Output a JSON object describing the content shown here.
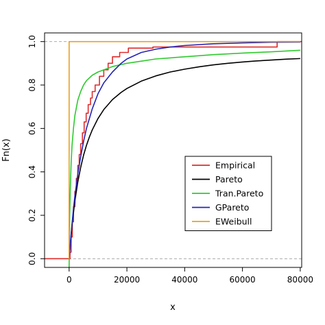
{
  "chart_data": {
    "type": "line",
    "xlabel": "x",
    "ylabel": "Fn(x)",
    "xlim": [
      -8500,
      80500
    ],
    "ylim": [
      -0.04,
      1.04
    ],
    "xticks": [
      {
        "value": 0,
        "label": "0"
      },
      {
        "value": 20000,
        "label": "20000"
      },
      {
        "value": 40000,
        "label": "40000"
      },
      {
        "value": 60000,
        "label": "60000"
      },
      {
        "value": 80000,
        "label": "80000"
      }
    ],
    "yticks": [
      {
        "value": 0.0,
        "label": "0.0"
      },
      {
        "value": 0.2,
        "label": "0.2"
      },
      {
        "value": 0.4,
        "label": "0.4"
      },
      {
        "value": 0.6,
        "label": "0.6"
      },
      {
        "value": 0.8,
        "label": "0.8"
      },
      {
        "value": 1.0,
        "label": "1.0"
      }
    ],
    "reference_lines": [
      0,
      1
    ],
    "legend_position": "center-right",
    "series": [
      {
        "name": "Empirical",
        "color": "#df2b2b",
        "step": true,
        "x": [
          -8500,
          0,
          300,
          700,
          1100,
          1500,
          2000,
          2500,
          3000,
          3500,
          4000,
          4600,
          5200,
          5900,
          6600,
          7400,
          8000,
          9000,
          10500,
          12000,
          13500,
          15000,
          17500,
          20500,
          29000,
          72000,
          80500
        ],
        "y": [
          0,
          0,
          0.03,
          0.1,
          0.17,
          0.24,
          0.31,
          0.37,
          0.43,
          0.48,
          0.53,
          0.58,
          0.63,
          0.67,
          0.71,
          0.74,
          0.77,
          0.8,
          0.84,
          0.87,
          0.9,
          0.93,
          0.95,
          0.97,
          0.975,
          1.0,
          1.0
        ]
      },
      {
        "name": "Pareto",
        "color": "#000000",
        "x": [
          0,
          1000,
          2000,
          3000,
          4000,
          5000,
          6000,
          7000,
          8000,
          10000,
          12000,
          15000,
          18000,
          20000,
          25000,
          30000,
          35000,
          40000,
          45000,
          50000,
          55000,
          60000,
          65000,
          70000,
          75000,
          80000
        ],
        "y": [
          0,
          0.154,
          0.267,
          0.353,
          0.421,
          0.477,
          0.522,
          0.56,
          0.593,
          0.646,
          0.687,
          0.733,
          0.766,
          0.784,
          0.818,
          0.842,
          0.86,
          0.873,
          0.884,
          0.893,
          0.9,
          0.906,
          0.911,
          0.915,
          0.919,
          0.922
        ]
      },
      {
        "name": "Tran.Pareto",
        "color": "#2ec92e",
        "x": [
          0,
          50,
          100,
          200,
          400,
          700,
          1000,
          1500,
          2000,
          3000,
          4000,
          5000,
          6000,
          8000,
          10000,
          12000,
          15000,
          20000,
          25000,
          30000,
          40000,
          50000,
          60000,
          70000,
          80000
        ],
        "y": [
          -0.04,
          0.02,
          0.1,
          0.2,
          0.32,
          0.44,
          0.52,
          0.6,
          0.66,
          0.73,
          0.77,
          0.8,
          0.82,
          0.845,
          0.86,
          0.87,
          0.885,
          0.9,
          0.91,
          0.92,
          0.93,
          0.94,
          0.947,
          0.953,
          0.96
        ]
      },
      {
        "name": "GPareto",
        "color": "#2323b8",
        "x": [
          0,
          300,
          600,
          1000,
          1500,
          2000,
          3000,
          4000,
          5000,
          6000,
          8000,
          10000,
          12000,
          15000,
          18000,
          20000,
          25000,
          30000,
          35000,
          40000,
          50000,
          60000,
          70000,
          80000
        ],
        "y": [
          0,
          0.05,
          0.1,
          0.16,
          0.23,
          0.29,
          0.39,
          0.47,
          0.54,
          0.6,
          0.69,
          0.76,
          0.81,
          0.86,
          0.9,
          0.92,
          0.95,
          0.965,
          0.975,
          0.982,
          0.99,
          0.994,
          0.997,
          0.998
        ]
      },
      {
        "name": "EWeibull",
        "color": "#e8a020",
        "x": [
          0,
          0,
          1,
          80000
        ],
        "y": [
          0,
          0.99,
          1.0,
          1.0
        ]
      }
    ]
  }
}
